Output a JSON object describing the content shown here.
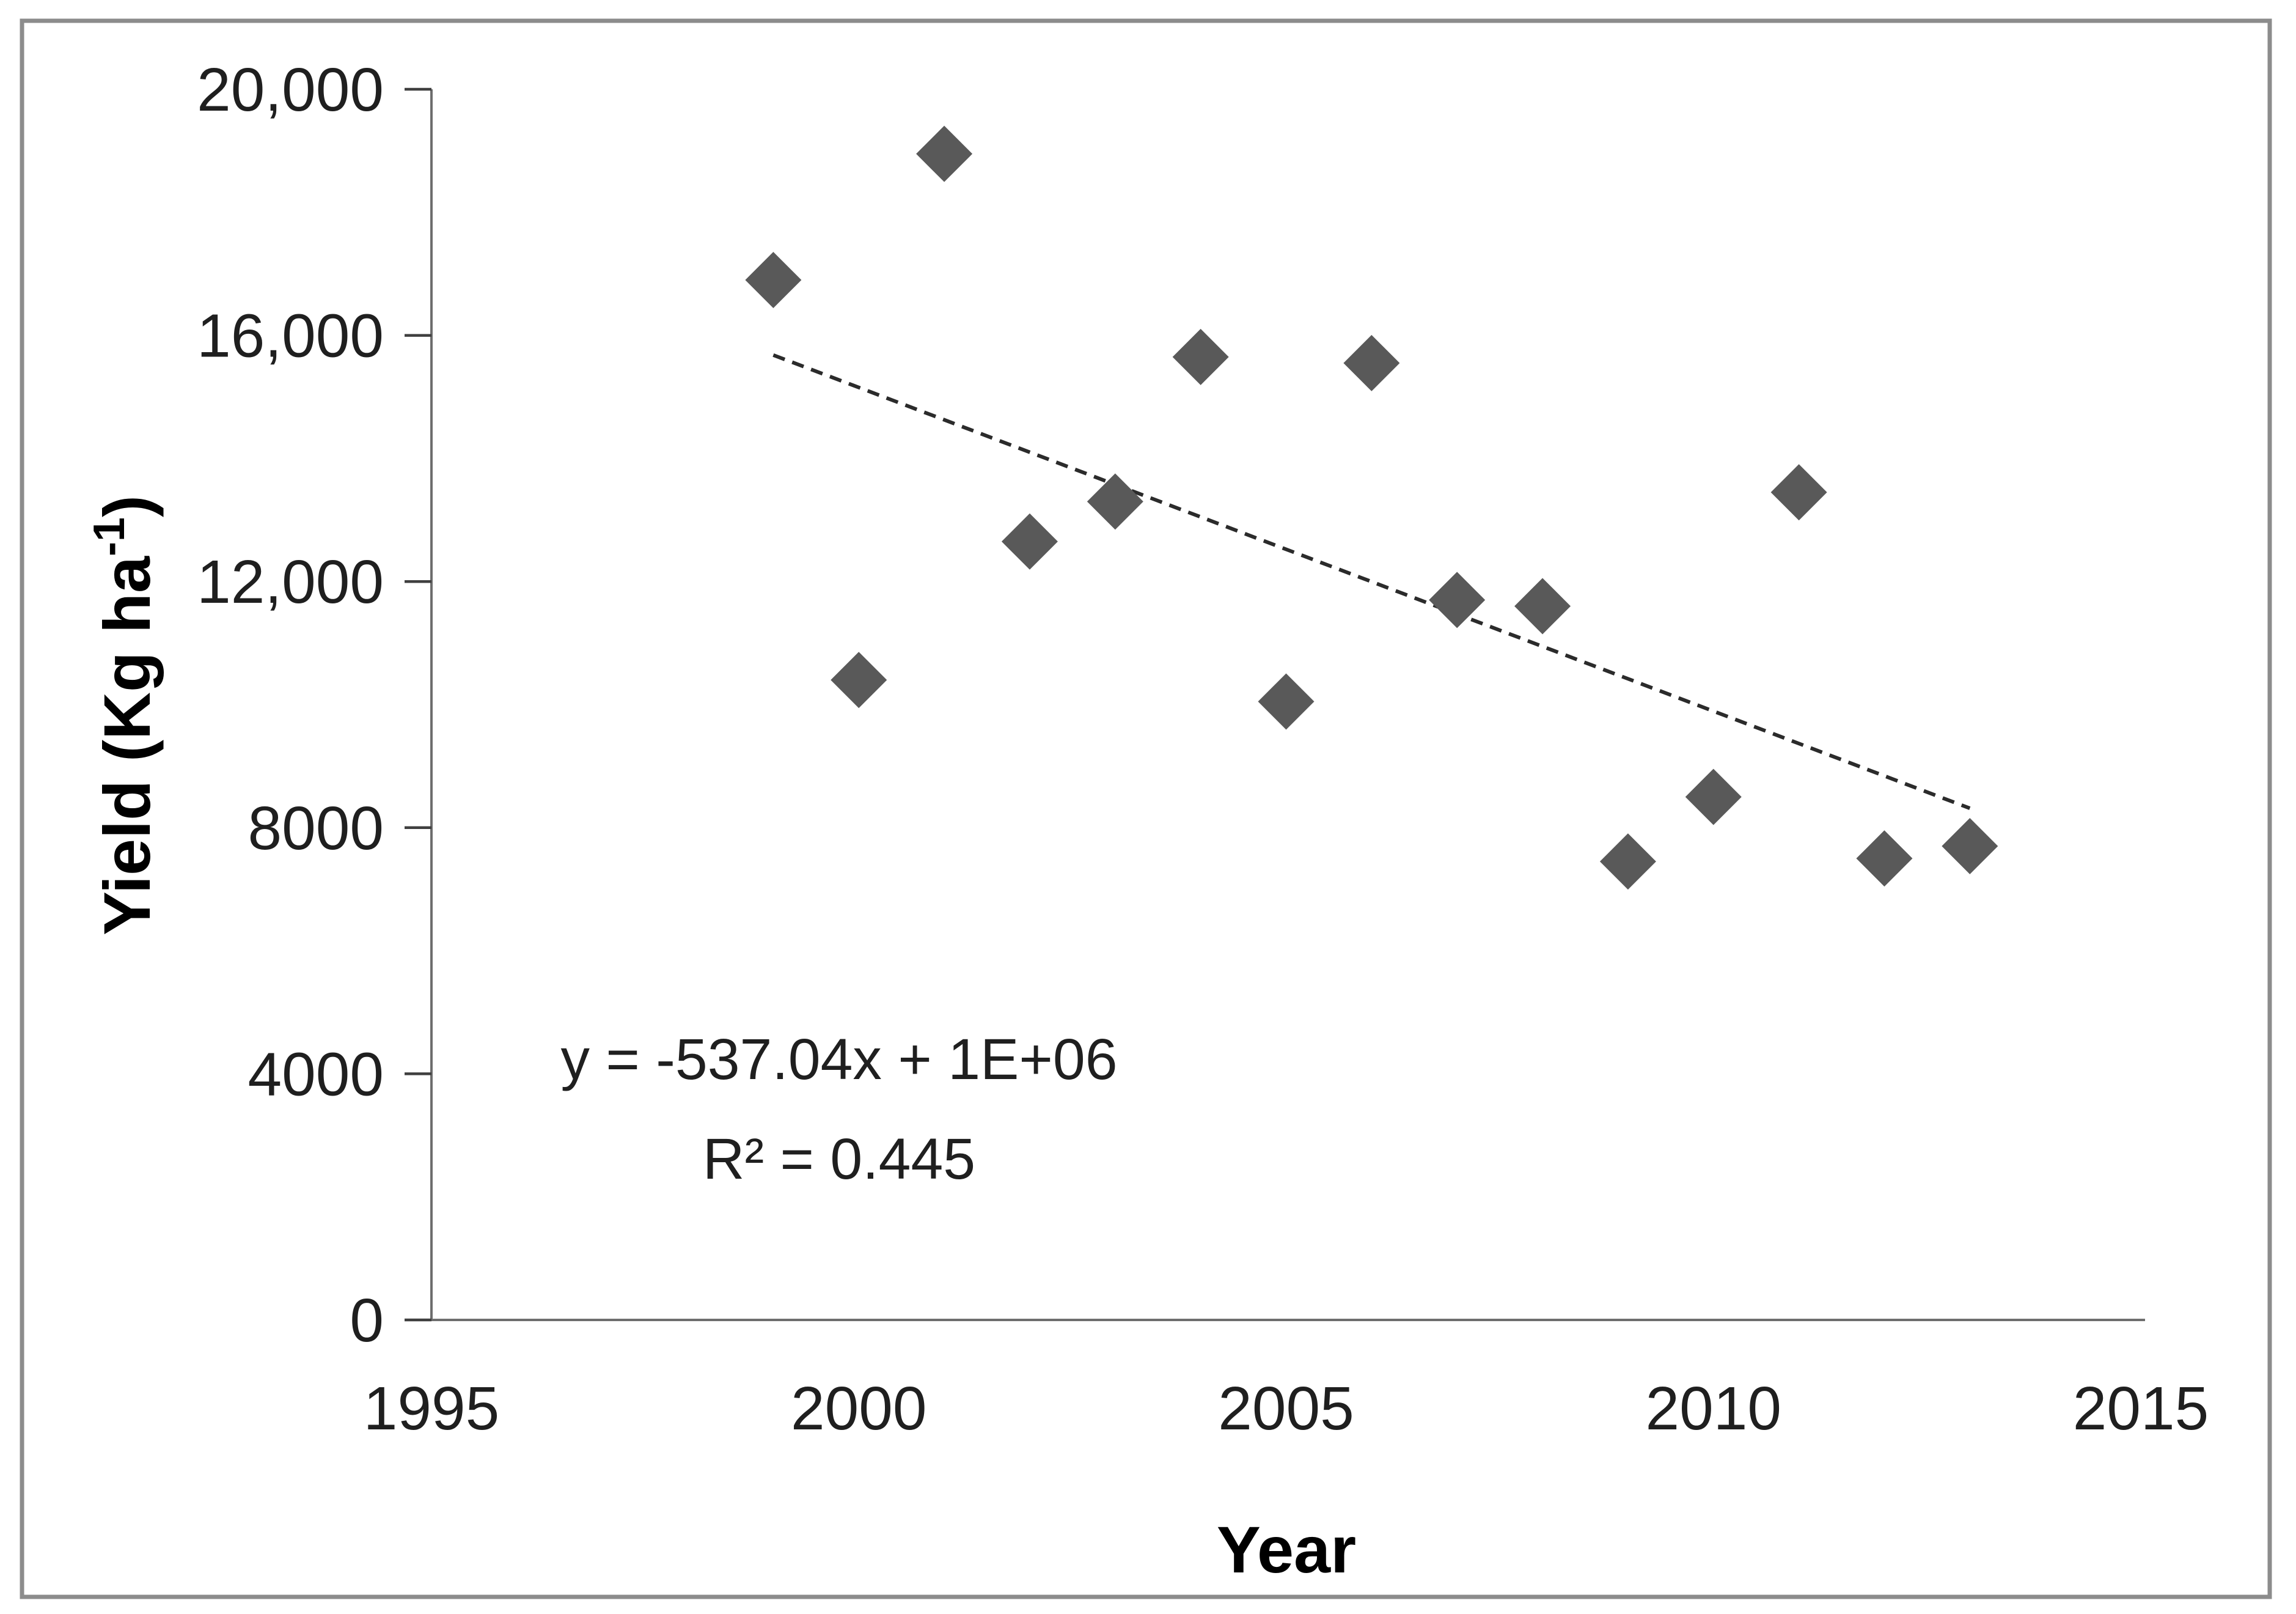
{
  "chart_data": {
    "type": "scatter",
    "title": "",
    "xlabel": "Year",
    "ylabel": "Yield (Kg ha⁻¹)",
    "ylabel_parts": {
      "main": "Yield (Kg ha",
      "sup": "-1",
      "end": ")"
    },
    "x": [
      1999,
      2000,
      2001,
      2002,
      2003,
      2004,
      2005,
      2006,
      2007,
      2008,
      2009,
      2010,
      2011,
      2012,
      2013
    ],
    "series": [
      {
        "name": "Yield",
        "values": [
          16900,
          10400,
          18950,
          12650,
          13300,
          15650,
          10050,
          15550,
          11700,
          11600,
          7450,
          8500,
          13450,
          7500,
          7700
        ]
      }
    ],
    "xlim": [
      1995,
      2015
    ],
    "ylim": [
      0,
      20000
    ],
    "grid": false,
    "legend": "none",
    "x_ticks": [
      {
        "value": 1995,
        "label": "1995"
      },
      {
        "value": 2000,
        "label": "2000"
      },
      {
        "value": 2005,
        "label": "2005"
      },
      {
        "value": 2010,
        "label": "2010"
      },
      {
        "value": 2015,
        "label": "2015"
      }
    ],
    "y_ticks": [
      {
        "value": 0,
        "label": "0"
      },
      {
        "value": 4000,
        "label": "4000"
      },
      {
        "value": 8000,
        "label": "8000"
      },
      {
        "value": 12000,
        "label": "12,000"
      },
      {
        "value": 16000,
        "label": "16,000"
      },
      {
        "value": 20000,
        "label": "20,000"
      }
    ],
    "annotation": {
      "equation": "y = -537.04x + 1E+06",
      "r_squared": "R² = 0.445"
    },
    "trendline": {
      "style": "dashed",
      "start": {
        "x": 1999,
        "y": 15680
      },
      "end": {
        "x": 2013,
        "y": 8315
      }
    },
    "marker": {
      "shape": "diamond",
      "color": "#595959"
    },
    "colors": {
      "trendline": "#2b2b2b",
      "axis": "#6e6e6e",
      "tick": "#3f3f3f",
      "frame": "#8c8c8c",
      "background": "#ffffff"
    }
  }
}
